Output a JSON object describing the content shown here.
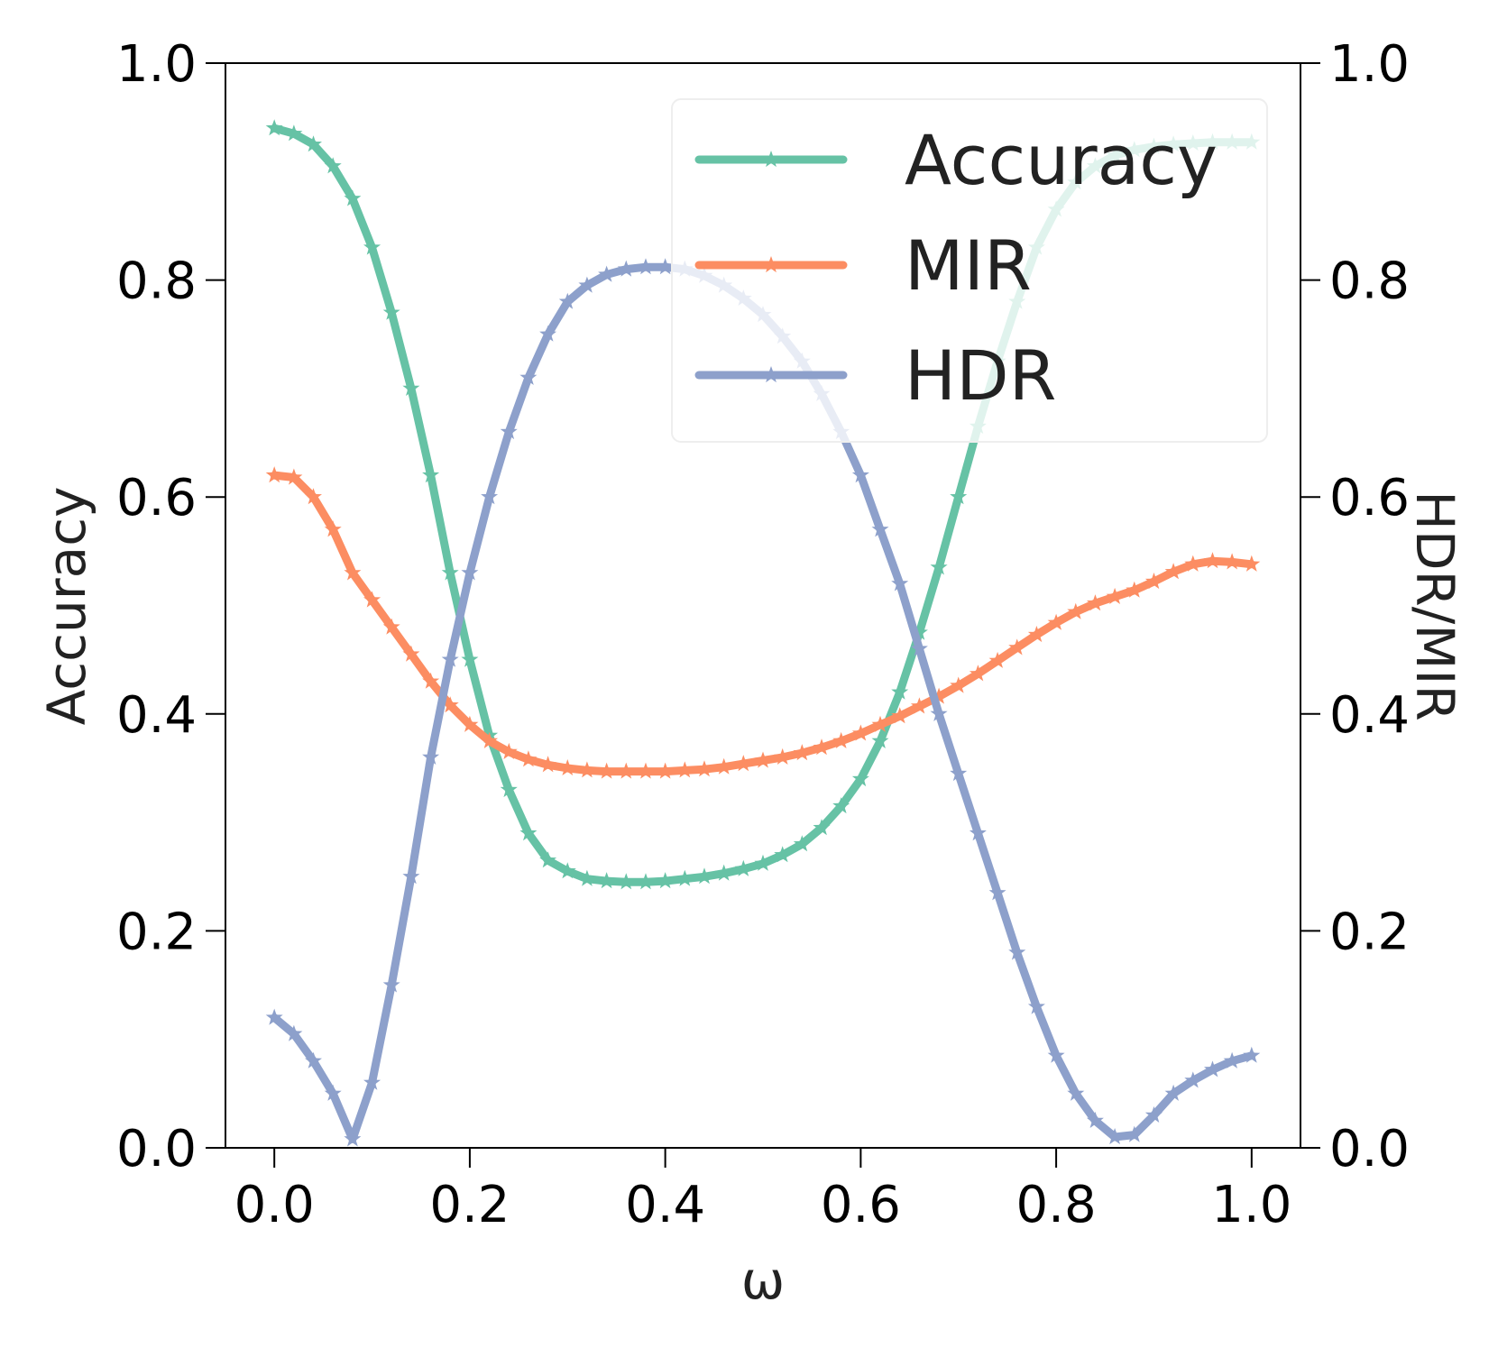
{
  "chart_data": {
    "type": "line",
    "xlabel": "ω",
    "ylabel_left": "Accuracy",
    "ylabel_right": "HDR/MIR",
    "xlim": [
      -0.05,
      1.05
    ],
    "ylim_left": [
      0.0,
      1.0
    ],
    "ylim_right": [
      0.0,
      1.0
    ],
    "x_ticks": [
      "0.0",
      "0.2",
      "0.4",
      "0.6",
      "0.8",
      "1.0"
    ],
    "y_ticks_left": [
      "0.0",
      "0.2",
      "0.4",
      "0.6",
      "0.8",
      "1.0"
    ],
    "y_ticks_right": [
      "0.0",
      "0.2",
      "0.4",
      "0.6",
      "0.8",
      "1.0"
    ],
    "grid": false,
    "legend_position": "top-right",
    "marker": "star",
    "series": [
      {
        "name": "Accuracy",
        "color": "#66c2a5",
        "x": [
          0.0,
          0.02,
          0.04,
          0.06,
          0.08,
          0.1,
          0.12,
          0.14,
          0.16,
          0.18,
          0.2,
          0.22,
          0.24,
          0.26,
          0.28,
          0.3,
          0.32,
          0.34,
          0.36,
          0.38,
          0.4,
          0.42,
          0.44,
          0.46,
          0.48,
          0.5,
          0.52,
          0.54,
          0.56,
          0.58,
          0.6,
          0.62,
          0.64,
          0.66,
          0.68,
          0.7,
          0.72,
          0.74,
          0.76,
          0.78,
          0.8,
          0.82,
          0.84,
          0.86,
          0.88,
          0.9,
          0.92,
          0.94,
          0.96,
          0.98,
          1.0
        ],
        "y": [
          0.94,
          0.935,
          0.925,
          0.905,
          0.875,
          0.83,
          0.77,
          0.7,
          0.62,
          0.53,
          0.45,
          0.38,
          0.33,
          0.29,
          0.265,
          0.255,
          0.248,
          0.246,
          0.245,
          0.245,
          0.246,
          0.248,
          0.25,
          0.253,
          0.257,
          0.262,
          0.27,
          0.28,
          0.295,
          0.315,
          0.34,
          0.375,
          0.42,
          0.475,
          0.535,
          0.6,
          0.665,
          0.725,
          0.78,
          0.83,
          0.865,
          0.89,
          0.905,
          0.915,
          0.92,
          0.923,
          0.925,
          0.926,
          0.927,
          0.927,
          0.927
        ]
      },
      {
        "name": "MIR",
        "color": "#fc8d62",
        "x": [
          0.0,
          0.02,
          0.04,
          0.06,
          0.08,
          0.1,
          0.12,
          0.14,
          0.16,
          0.18,
          0.2,
          0.22,
          0.24,
          0.26,
          0.28,
          0.3,
          0.32,
          0.34,
          0.36,
          0.38,
          0.4,
          0.42,
          0.44,
          0.46,
          0.48,
          0.5,
          0.52,
          0.54,
          0.56,
          0.58,
          0.6,
          0.62,
          0.64,
          0.66,
          0.68,
          0.7,
          0.72,
          0.74,
          0.76,
          0.78,
          0.8,
          0.82,
          0.84,
          0.86,
          0.88,
          0.9,
          0.92,
          0.94,
          0.96,
          0.98,
          1.0
        ],
        "y": [
          0.62,
          0.618,
          0.6,
          0.57,
          0.53,
          0.505,
          0.48,
          0.455,
          0.43,
          0.408,
          0.39,
          0.375,
          0.365,
          0.358,
          0.353,
          0.35,
          0.348,
          0.347,
          0.347,
          0.347,
          0.347,
          0.348,
          0.349,
          0.351,
          0.354,
          0.357,
          0.36,
          0.364,
          0.369,
          0.375,
          0.382,
          0.39,
          0.398,
          0.407,
          0.416,
          0.426,
          0.437,
          0.449,
          0.461,
          0.473,
          0.484,
          0.494,
          0.502,
          0.508,
          0.514,
          0.522,
          0.531,
          0.538,
          0.541,
          0.54,
          0.538
        ]
      },
      {
        "name": "HDR",
        "color": "#8da0cb",
        "x": [
          0.0,
          0.02,
          0.04,
          0.06,
          0.08,
          0.1,
          0.12,
          0.14,
          0.16,
          0.18,
          0.2,
          0.22,
          0.24,
          0.26,
          0.28,
          0.3,
          0.32,
          0.34,
          0.36,
          0.38,
          0.4,
          0.42,
          0.44,
          0.46,
          0.48,
          0.5,
          0.52,
          0.54,
          0.56,
          0.58,
          0.6,
          0.62,
          0.64,
          0.66,
          0.68,
          0.7,
          0.72,
          0.74,
          0.76,
          0.78,
          0.8,
          0.82,
          0.84,
          0.86,
          0.88,
          0.9,
          0.92,
          0.94,
          0.96,
          0.98,
          1.0
        ],
        "y": [
          0.12,
          0.105,
          0.08,
          0.05,
          0.008,
          0.06,
          0.15,
          0.25,
          0.36,
          0.45,
          0.53,
          0.6,
          0.66,
          0.71,
          0.75,
          0.78,
          0.795,
          0.805,
          0.81,
          0.812,
          0.812,
          0.81,
          0.804,
          0.795,
          0.783,
          0.768,
          0.748,
          0.725,
          0.695,
          0.66,
          0.62,
          0.57,
          0.52,
          0.46,
          0.4,
          0.345,
          0.29,
          0.235,
          0.18,
          0.13,
          0.085,
          0.05,
          0.025,
          0.01,
          0.012,
          0.03,
          0.05,
          0.062,
          0.072,
          0.08,
          0.085
        ]
      }
    ]
  }
}
